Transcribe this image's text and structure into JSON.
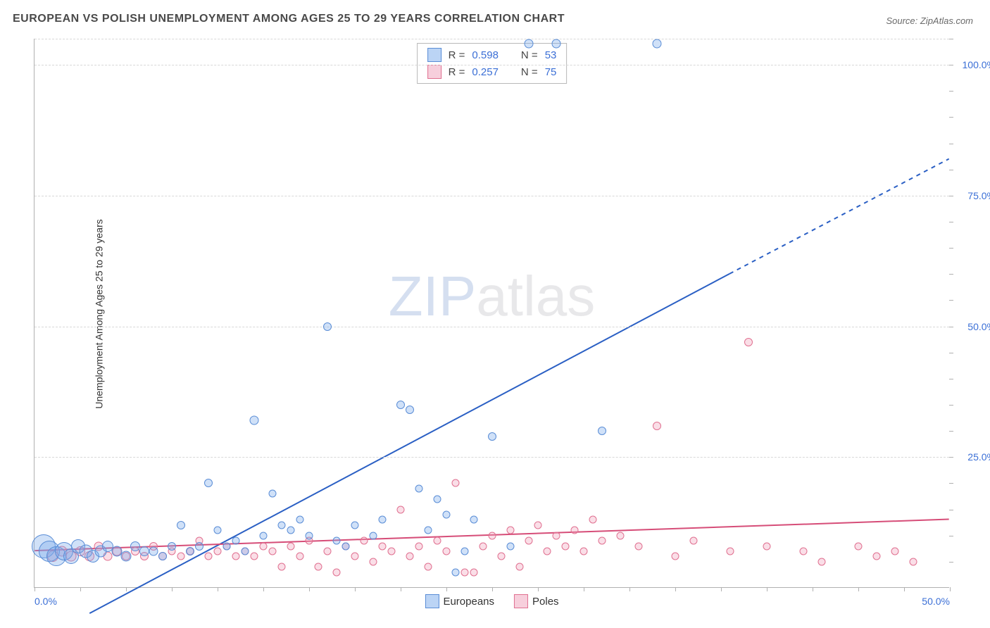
{
  "title": "EUROPEAN VS POLISH UNEMPLOYMENT AMONG AGES 25 TO 29 YEARS CORRELATION CHART",
  "source_label": "Source: ZipAtlas.com",
  "ylabel": "Unemployment Among Ages 25 to 29 years",
  "watermark_a": "ZIP",
  "watermark_b": "atlas",
  "chart": {
    "type": "scatter",
    "xlim": [
      0,
      50
    ],
    "ylim": [
      0,
      105
    ],
    "x_ticks_labeled": [
      {
        "v": 0,
        "label": "0.0%"
      },
      {
        "v": 50,
        "label": "50.0%"
      }
    ],
    "x_minor_step": 2.5,
    "y_ticks": [
      {
        "v": 25,
        "label": "25.0%"
      },
      {
        "v": 50,
        "label": "50.0%"
      },
      {
        "v": 75,
        "label": "75.0%"
      },
      {
        "v": 100,
        "label": "100.0%"
      }
    ],
    "y_right_minor_step": 5,
    "grid_color": "#d8d8d8",
    "axis_color": "#b0b0b0",
    "background_color": "#ffffff",
    "label_color": "#3b6fd6",
    "title_color": "#4a4a4a",
    "title_fontsize": 16,
    "label_fontsize": 14,
    "series": [
      {
        "name": "Europeans",
        "color_fill": "rgba(120,170,235,0.35)",
        "color_stroke": "#5a8dd6",
        "trend": {
          "x1": 3,
          "y1": -5,
          "x2": 38,
          "y2": 60,
          "dash_from_x": 38,
          "dash_to": {
            "x": 50,
            "y": 82
          },
          "color": "#2a5fc4",
          "width": 2
        },
        "points": [
          {
            "x": 0.5,
            "y": 8,
            "r": 34
          },
          {
            "x": 0.8,
            "y": 7,
            "r": 30
          },
          {
            "x": 1.2,
            "y": 6,
            "r": 28
          },
          {
            "x": 1.6,
            "y": 7,
            "r": 26
          },
          {
            "x": 2.0,
            "y": 6,
            "r": 22
          },
          {
            "x": 2.4,
            "y": 8,
            "r": 20
          },
          {
            "x": 2.8,
            "y": 7,
            "r": 19
          },
          {
            "x": 3.2,
            "y": 6,
            "r": 18
          },
          {
            "x": 3.6,
            "y": 7,
            "r": 17
          },
          {
            "x": 4.0,
            "y": 8,
            "r": 16
          },
          {
            "x": 4.5,
            "y": 7,
            "r": 15
          },
          {
            "x": 5.0,
            "y": 6,
            "r": 15
          },
          {
            "x": 5.5,
            "y": 8,
            "r": 14
          },
          {
            "x": 6.0,
            "y": 7,
            "r": 14
          },
          {
            "x": 6.5,
            "y": 7,
            "r": 13
          },
          {
            "x": 7.0,
            "y": 6,
            "r": 12
          },
          {
            "x": 7.5,
            "y": 8,
            "r": 12
          },
          {
            "x": 8.0,
            "y": 12,
            "r": 12
          },
          {
            "x": 8.5,
            "y": 7,
            "r": 12
          },
          {
            "x": 9.0,
            "y": 8,
            "r": 12
          },
          {
            "x": 9.5,
            "y": 20,
            "r": 12
          },
          {
            "x": 10.0,
            "y": 11,
            "r": 11
          },
          {
            "x": 10.5,
            "y": 8,
            "r": 11
          },
          {
            "x": 11.0,
            "y": 9,
            "r": 11
          },
          {
            "x": 11.5,
            "y": 7,
            "r": 11
          },
          {
            "x": 12.0,
            "y": 32,
            "r": 13
          },
          {
            "x": 12.5,
            "y": 10,
            "r": 11
          },
          {
            "x": 13.0,
            "y": 18,
            "r": 11
          },
          {
            "x": 13.5,
            "y": 12,
            "r": 11
          },
          {
            "x": 14.0,
            "y": 11,
            "r": 11
          },
          {
            "x": 14.5,
            "y": 13,
            "r": 11
          },
          {
            "x": 15.0,
            "y": 10,
            "r": 11
          },
          {
            "x": 16.0,
            "y": 50,
            "r": 12
          },
          {
            "x": 16.5,
            "y": 9,
            "r": 11
          },
          {
            "x": 17.0,
            "y": 8,
            "r": 11
          },
          {
            "x": 17.5,
            "y": 12,
            "r": 11
          },
          {
            "x": 18.5,
            "y": 10,
            "r": 11
          },
          {
            "x": 19.0,
            "y": 13,
            "r": 11
          },
          {
            "x": 20.0,
            "y": 35,
            "r": 12
          },
          {
            "x": 20.5,
            "y": 34,
            "r": 12
          },
          {
            "x": 21.0,
            "y": 19,
            "r": 11
          },
          {
            "x": 21.5,
            "y": 11,
            "r": 11
          },
          {
            "x": 22.0,
            "y": 17,
            "r": 11
          },
          {
            "x": 22.5,
            "y": 14,
            "r": 11
          },
          {
            "x": 23.0,
            "y": 3,
            "r": 11
          },
          {
            "x": 24.0,
            "y": 13,
            "r": 11
          },
          {
            "x": 25.0,
            "y": 29,
            "r": 12
          },
          {
            "x": 26.0,
            "y": 8,
            "r": 11
          },
          {
            "x": 27.0,
            "y": 104,
            "r": 13
          },
          {
            "x": 28.5,
            "y": 104,
            "r": 13
          },
          {
            "x": 31.0,
            "y": 30,
            "r": 12
          },
          {
            "x": 34.0,
            "y": 104,
            "r": 13
          },
          {
            "x": 23.5,
            "y": 7,
            "r": 11
          }
        ]
      },
      {
        "name": "Poles",
        "color_fill": "rgba(240,160,185,0.35)",
        "color_stroke": "#e07090",
        "trend": {
          "x1": 0,
          "y1": 7,
          "x2": 50,
          "y2": 13,
          "color": "#d64d78",
          "width": 2
        },
        "points": [
          {
            "x": 1.0,
            "y": 6,
            "r": 16
          },
          {
            "x": 1.5,
            "y": 7,
            "r": 15
          },
          {
            "x": 2.0,
            "y": 6,
            "r": 15
          },
          {
            "x": 2.5,
            "y": 7,
            "r": 14
          },
          {
            "x": 3.0,
            "y": 6,
            "r": 14
          },
          {
            "x": 3.5,
            "y": 8,
            "r": 13
          },
          {
            "x": 4.0,
            "y": 6,
            "r": 13
          },
          {
            "x": 4.5,
            "y": 7,
            "r": 13
          },
          {
            "x": 5.0,
            "y": 6,
            "r": 12
          },
          {
            "x": 5.5,
            "y": 7,
            "r": 12
          },
          {
            "x": 6.0,
            "y": 6,
            "r": 12
          },
          {
            "x": 6.5,
            "y": 8,
            "r": 12
          },
          {
            "x": 7.0,
            "y": 6,
            "r": 12
          },
          {
            "x": 7.5,
            "y": 7,
            "r": 11
          },
          {
            "x": 8.0,
            "y": 6,
            "r": 11
          },
          {
            "x": 8.5,
            "y": 7,
            "r": 11
          },
          {
            "x": 9.0,
            "y": 9,
            "r": 11
          },
          {
            "x": 9.5,
            "y": 6,
            "r": 11
          },
          {
            "x": 10.0,
            "y": 7,
            "r": 11
          },
          {
            "x": 10.5,
            "y": 8,
            "r": 11
          },
          {
            "x": 11.0,
            "y": 6,
            "r": 11
          },
          {
            "x": 11.5,
            "y": 7,
            "r": 11
          },
          {
            "x": 12.0,
            "y": 6,
            "r": 11
          },
          {
            "x": 12.5,
            "y": 8,
            "r": 11
          },
          {
            "x": 13.0,
            "y": 7,
            "r": 11
          },
          {
            "x": 13.5,
            "y": 4,
            "r": 11
          },
          {
            "x": 14.0,
            "y": 8,
            "r": 11
          },
          {
            "x": 14.5,
            "y": 6,
            "r": 11
          },
          {
            "x": 15.0,
            "y": 9,
            "r": 11
          },
          {
            "x": 15.5,
            "y": 4,
            "r": 11
          },
          {
            "x": 16.0,
            "y": 7,
            "r": 11
          },
          {
            "x": 16.5,
            "y": 3,
            "r": 11
          },
          {
            "x": 17.0,
            "y": 8,
            "r": 11
          },
          {
            "x": 17.5,
            "y": 6,
            "r": 11
          },
          {
            "x": 18.0,
            "y": 9,
            "r": 11
          },
          {
            "x": 18.5,
            "y": 5,
            "r": 11
          },
          {
            "x": 19.0,
            "y": 8,
            "r": 11
          },
          {
            "x": 19.5,
            "y": 7,
            "r": 11
          },
          {
            "x": 20.0,
            "y": 15,
            "r": 11
          },
          {
            "x": 20.5,
            "y": 6,
            "r": 11
          },
          {
            "x": 21.0,
            "y": 8,
            "r": 11
          },
          {
            "x": 21.5,
            "y": 4,
            "r": 11
          },
          {
            "x": 22.0,
            "y": 9,
            "r": 11
          },
          {
            "x": 22.5,
            "y": 7,
            "r": 11
          },
          {
            "x": 23.0,
            "y": 20,
            "r": 11
          },
          {
            "x": 23.5,
            "y": 3,
            "r": 11
          },
          {
            "x": 24.0,
            "y": 3,
            "r": 11
          },
          {
            "x": 24.5,
            "y": 8,
            "r": 11
          },
          {
            "x": 25.0,
            "y": 10,
            "r": 11
          },
          {
            "x": 25.5,
            "y": 6,
            "r": 11
          },
          {
            "x": 26.0,
            "y": 11,
            "r": 11
          },
          {
            "x": 26.5,
            "y": 4,
            "r": 11
          },
          {
            "x": 27.0,
            "y": 9,
            "r": 11
          },
          {
            "x": 27.5,
            "y": 12,
            "r": 11
          },
          {
            "x": 28.0,
            "y": 7,
            "r": 11
          },
          {
            "x": 28.5,
            "y": 10,
            "r": 11
          },
          {
            "x": 29.0,
            "y": 8,
            "r": 11
          },
          {
            "x": 29.5,
            "y": 11,
            "r": 11
          },
          {
            "x": 30.0,
            "y": 7,
            "r": 11
          },
          {
            "x": 30.5,
            "y": 13,
            "r": 11
          },
          {
            "x": 31.0,
            "y": 9,
            "r": 11
          },
          {
            "x": 32.0,
            "y": 10,
            "r": 11
          },
          {
            "x": 33.0,
            "y": 8,
            "r": 11
          },
          {
            "x": 34.0,
            "y": 31,
            "r": 12
          },
          {
            "x": 35.0,
            "y": 6,
            "r": 11
          },
          {
            "x": 36.0,
            "y": 9,
            "r": 11
          },
          {
            "x": 38.0,
            "y": 7,
            "r": 11
          },
          {
            "x": 39.0,
            "y": 47,
            "r": 12
          },
          {
            "x": 40.0,
            "y": 8,
            "r": 11
          },
          {
            "x": 42.0,
            "y": 7,
            "r": 11
          },
          {
            "x": 43.0,
            "y": 5,
            "r": 11
          },
          {
            "x": 45.0,
            "y": 8,
            "r": 11
          },
          {
            "x": 46.0,
            "y": 6,
            "r": 11
          },
          {
            "x": 47.0,
            "y": 7,
            "r": 11
          },
          {
            "x": 48.0,
            "y": 5,
            "r": 11
          }
        ]
      }
    ],
    "stats": [
      {
        "color": "blue",
        "r_label": "R =",
        "r_value": "0.598",
        "n_label": "N =",
        "n_value": "53"
      },
      {
        "color": "pink",
        "r_label": "R =",
        "r_value": "0.257",
        "n_label": "N =",
        "n_value": "75"
      }
    ],
    "bottom_legend": [
      {
        "color": "blue",
        "label": "Europeans"
      },
      {
        "color": "pink",
        "label": "Poles"
      }
    ]
  }
}
